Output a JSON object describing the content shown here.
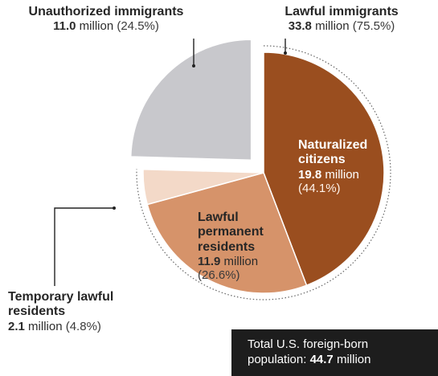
{
  "chart_data": {
    "type": "pie",
    "unit": "million",
    "groups": [
      {
        "name": "Unauthorized immigrants",
        "value": 11.0,
        "value_text": "11.0",
        "pct_text": "(24.5%)",
        "slices": [
          "Unauthorized"
        ]
      },
      {
        "name": "Lawful immigrants",
        "value": 33.8,
        "value_text": "33.8",
        "pct_text": "(75.5%)",
        "slices": [
          "Naturalized citizens",
          "Lawful permanent residents",
          "Temporary lawful residents"
        ]
      }
    ],
    "slices": [
      {
        "id": "unauthorized",
        "name": "Unauthorized",
        "value": 11.0,
        "percent": 24.5,
        "color": "#c8c8cc",
        "exploded": true
      },
      {
        "id": "naturalized",
        "name": "Naturalized citizens",
        "label_lines": [
          "Naturalized",
          "citizens"
        ],
        "value": 19.8,
        "value_text": "19.8",
        "pct_text": "(44.1%)",
        "percent": 44.1,
        "color": "#9a4e1f"
      },
      {
        "id": "permanent",
        "name": "Lawful permanent residents",
        "label_lines": [
          "Lawful",
          "permanent",
          "residents"
        ],
        "value": 11.9,
        "value_text": "11.9",
        "pct_text": "(26.6%)",
        "percent": 26.6,
        "color": "#d6936a"
      },
      {
        "id": "temporary",
        "name": "Temporary lawful residents",
        "label_lines": [
          "Temporary lawful",
          "residents"
        ],
        "value": 2.1,
        "value_text": "2.1",
        "pct_text": "(4.8%)",
        "percent": 4.8,
        "color": "#f3d9c8"
      }
    ],
    "unit_word": "million",
    "total": {
      "line1": "Total U.S. foreign-born",
      "line2_prefix": "population:",
      "value_text": "44.7",
      "unit": "million",
      "value": 44.7
    }
  }
}
